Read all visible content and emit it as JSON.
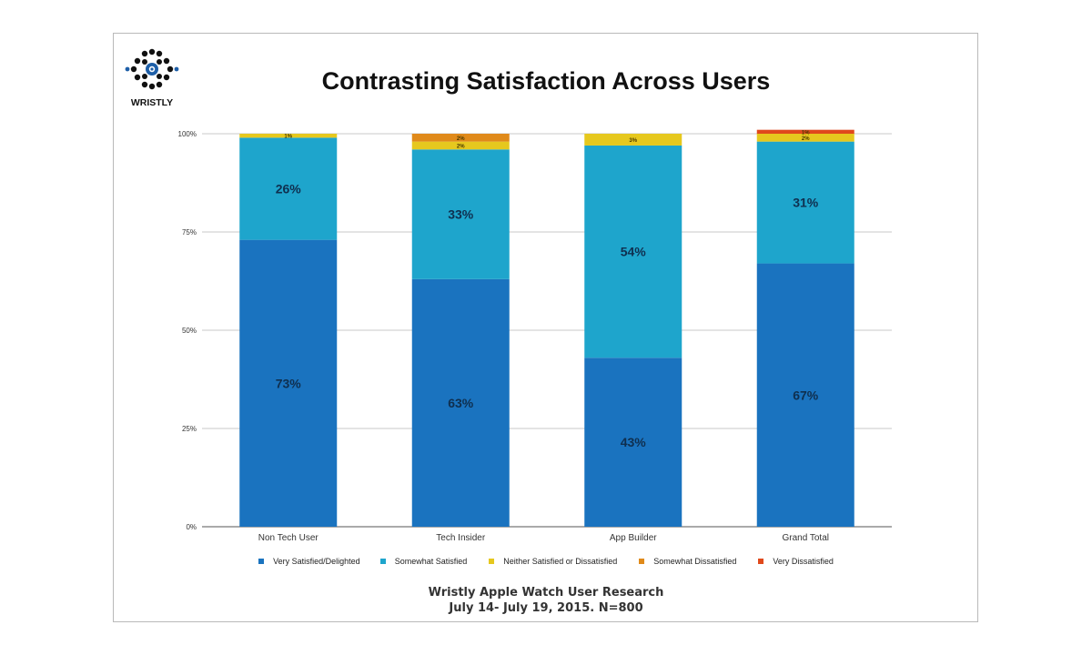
{
  "title": "Contrasting Satisfaction Across Users",
  "logo": {
    "brand": "WRISTLY"
  },
  "footer": {
    "line1": "Wristly Apple Watch User Research",
    "line2": "July 14- July 19, 2015. N=800"
  },
  "colors": {
    "very_satisfied": "#1a73bf",
    "somewhat_satisfied": "#1ea5cc",
    "neither": "#e6c81e",
    "somewhat_dissatisfied": "#e08a1a",
    "very_dissatisfied": "#e0491c",
    "grid": "#c8c8c8",
    "logo_blue": "#1e5fa8"
  },
  "chart_data": {
    "type": "bar",
    "stacked": true,
    "title": "Contrasting Satisfaction Across Users",
    "categories": [
      "Non Tech User",
      "Tech Insider",
      "App Builder",
      "Grand Total"
    ],
    "y_ticks": [
      "0%",
      "25%",
      "50%",
      "75%",
      "100%"
    ],
    "ylim": [
      0,
      100
    ],
    "grid": true,
    "legend_position": "bottom",
    "series": [
      {
        "name": "Very Satisfied/Delighted",
        "values": [
          73,
          63,
          43,
          67
        ],
        "labels": [
          "73%",
          "63%",
          "43%",
          "67%"
        ]
      },
      {
        "name": "Somewhat Satisfied",
        "values": [
          26,
          33,
          54,
          31
        ],
        "labels": [
          "26%",
          "33%",
          "54%",
          "31%"
        ]
      },
      {
        "name": "Neither Satisfied or Dissatisfied",
        "values": [
          1,
          2,
          3,
          2
        ],
        "labels": [
          "1%",
          "2%",
          "3%",
          "2%"
        ]
      },
      {
        "name": "Somewhat Dissatisfied",
        "values": [
          0,
          2,
          0,
          0
        ],
        "labels": [
          "",
          "2%",
          "",
          ""
        ]
      },
      {
        "name": "Very Dissatisfied",
        "values": [
          0,
          0,
          0,
          1
        ],
        "labels": [
          "",
          "",
          "",
          "1%"
        ]
      }
    ]
  }
}
